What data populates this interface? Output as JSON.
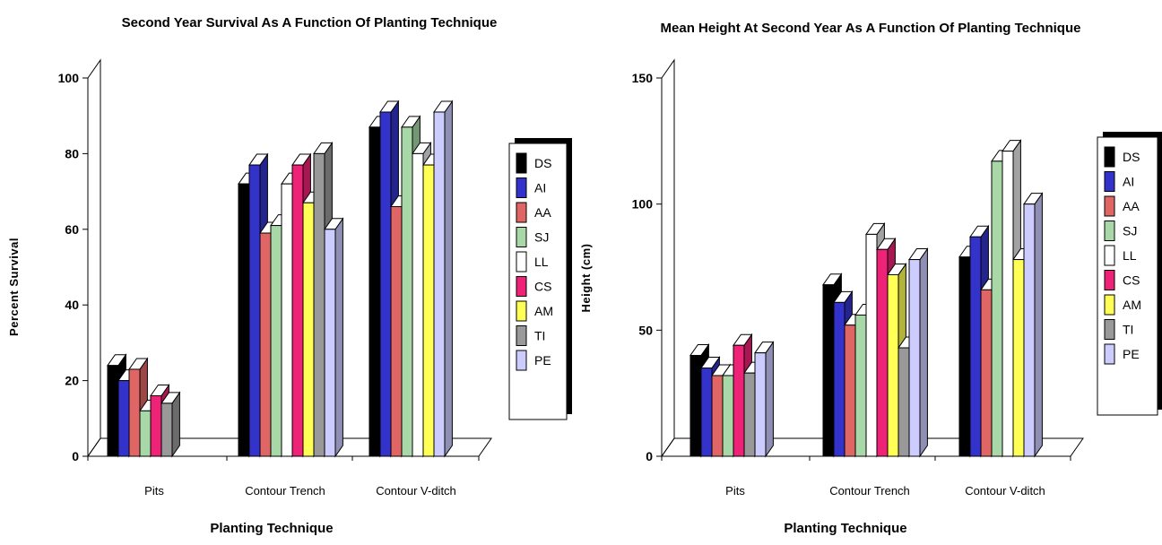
{
  "chart_data": [
    {
      "type": "bar",
      "title": "Second Year Survival As A Function Of Planting Technique",
      "xlabel": "Planting Technique",
      "ylabel": "Percent Survival",
      "ylim": [
        0,
        100
      ],
      "yticks": [
        "0",
        "20",
        "40",
        "60",
        "80",
        "100"
      ],
      "categories": [
        "Pits",
        "Contour Trench",
        "Contour V-ditch"
      ],
      "legend_position": "right",
      "series": [
        {
          "name": "DS",
          "color": "#000000",
          "values": [
            24,
            72,
            87
          ]
        },
        {
          "name": "AI",
          "color": "#3333cc",
          "values": [
            20,
            77,
            91
          ]
        },
        {
          "name": "AA",
          "color": "#e06666",
          "values": [
            23,
            59,
            66
          ]
        },
        {
          "name": "SJ",
          "color": "#a8d8a8",
          "values": [
            12,
            61,
            87
          ]
        },
        {
          "name": "LL",
          "color": "#ffffff",
          "values": [
            null,
            72,
            80
          ]
        },
        {
          "name": "CS",
          "color": "#ee2277",
          "values": [
            16,
            77,
            null
          ]
        },
        {
          "name": "AM",
          "color": "#ffff55",
          "values": [
            null,
            67,
            77
          ]
        },
        {
          "name": "TI",
          "color": "#999999",
          "values": [
            14,
            80,
            null
          ]
        },
        {
          "name": "PE",
          "color": "#ccccff",
          "values": [
            null,
            60,
            91
          ]
        }
      ]
    },
    {
      "type": "bar",
      "title": "Mean Height At Second Year As A Function Of Planting Technique",
      "xlabel": "Planting Technique",
      "ylabel": "Height (cm)",
      "ylim": [
        0,
        150
      ],
      "yticks": [
        "0",
        "50",
        "100",
        "150"
      ],
      "categories": [
        "Pits",
        "Contour Trench",
        "Contour V-ditch"
      ],
      "legend_position": "right",
      "series": [
        {
          "name": "DS",
          "color": "#000000",
          "values": [
            40,
            68,
            79
          ]
        },
        {
          "name": "AI",
          "color": "#3333cc",
          "values": [
            35,
            61,
            87
          ]
        },
        {
          "name": "AA",
          "color": "#e06666",
          "values": [
            32,
            52,
            66
          ]
        },
        {
          "name": "SJ",
          "color": "#a8d8a8",
          "values": [
            32,
            56,
            117
          ]
        },
        {
          "name": "LL",
          "color": "#ffffff",
          "values": [
            null,
            88,
            121
          ]
        },
        {
          "name": "CS",
          "color": "#ee2277",
          "values": [
            44,
            82,
            null
          ]
        },
        {
          "name": "AM",
          "color": "#ffff55",
          "values": [
            null,
            72,
            78
          ]
        },
        {
          "name": "TI",
          "color": "#999999",
          "values": [
            33,
            43,
            null
          ]
        },
        {
          "name": "PE",
          "color": "#ccccff",
          "values": [
            41,
            78,
            100
          ]
        }
      ]
    }
  ]
}
